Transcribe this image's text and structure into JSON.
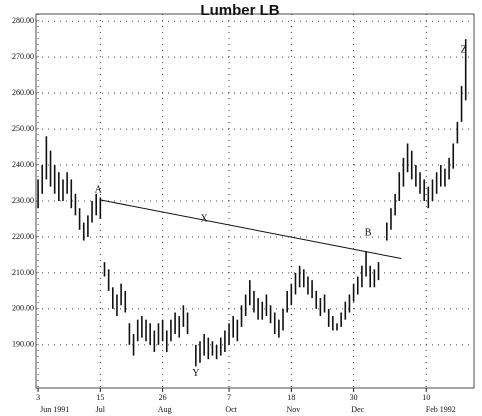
{
  "chart_data": {
    "type": "ohlc",
    "title": "Lumber LB",
    "color": "#111111",
    "grid": true,
    "ylim": [
      178,
      282
    ],
    "yticks": [
      {
        "value": 190,
        "label": "190.00"
      },
      {
        "value": 200,
        "label": "200.00"
      },
      {
        "value": 210,
        "label": "210.00"
      },
      {
        "value": 220,
        "label": "220.00"
      },
      {
        "value": 230,
        "label": "230.00"
      },
      {
        "value": 240,
        "label": "240.00"
      },
      {
        "value": 250,
        "label": "250.00"
      },
      {
        "value": 260,
        "label": "260.00"
      },
      {
        "value": 270,
        "label": "270.00"
      },
      {
        "value": 280,
        "label": "280.00"
      }
    ],
    "xlim": [
      -1,
      210
    ],
    "xticks": [
      {
        "value": 0,
        "label": "3"
      },
      {
        "value": 30,
        "label": "15"
      },
      {
        "value": 60,
        "label": "26"
      },
      {
        "value": 92,
        "label": "7"
      },
      {
        "value": 122,
        "label": "18"
      },
      {
        "value": 152,
        "label": "30"
      },
      {
        "value": 187,
        "label": "10"
      }
    ],
    "xtick_months": [
      {
        "value": 8,
        "label": "Jun 1991"
      },
      {
        "value": 30,
        "label": "Jul"
      },
      {
        "value": 61,
        "label": "Aug"
      },
      {
        "value": 93,
        "label": "Oct"
      },
      {
        "value": 123,
        "label": "Nov"
      },
      {
        "value": 154,
        "label": "Dec"
      },
      {
        "value": 194,
        "label": "Feb 1992"
      }
    ],
    "x": [
      0,
      2,
      4,
      6,
      8,
      10,
      12,
      14,
      16,
      18,
      20,
      22,
      24,
      26,
      28,
      30,
      32,
      34,
      36,
      38,
      40,
      42,
      44,
      46,
      48,
      50,
      52,
      54,
      56,
      58,
      60,
      62,
      64,
      66,
      68,
      70,
      72,
      76,
      78,
      80,
      82,
      84,
      86,
      88,
      90,
      92,
      94,
      96,
      98,
      100,
      102,
      104,
      106,
      108,
      110,
      112,
      114,
      116,
      118,
      120,
      122,
      124,
      126,
      128,
      130,
      132,
      134,
      136,
      138,
      140,
      142,
      144,
      146,
      148,
      150,
      152,
      154,
      156,
      158,
      160,
      162,
      164,
      168,
      170,
      172,
      174,
      176,
      178,
      180,
      182,
      184,
      186,
      188,
      190,
      192,
      194,
      196,
      198,
      200,
      202,
      204,
      206
    ],
    "high": [
      236,
      240,
      248,
      244,
      240,
      238,
      236,
      238,
      236,
      232,
      228,
      224,
      226,
      230,
      232,
      231,
      213,
      211,
      206,
      204,
      207,
      205,
      196,
      193,
      197,
      198,
      197,
      196,
      194,
      196,
      197,
      194,
      197,
      199,
      198,
      201,
      199,
      190,
      191,
      193,
      192,
      191,
      190,
      192,
      194,
      196,
      198,
      197,
      201,
      204,
      208,
      205,
      203,
      202,
      204,
      201,
      199,
      197,
      200,
      205,
      207,
      210,
      212,
      211,
      209,
      208,
      205,
      203,
      204,
      200,
      198,
      196,
      199,
      202,
      204,
      207,
      209,
      212,
      216,
      212,
      211,
      213,
      224,
      228,
      232,
      238,
      242,
      246,
      244,
      240,
      238,
      236,
      234,
      236,
      238,
      240,
      239,
      242,
      246,
      252,
      262,
      275
    ],
    "low": [
      228,
      232,
      236,
      234,
      232,
      230,
      230,
      232,
      228,
      226,
      222,
      219,
      220,
      224,
      226,
      225,
      209,
      205,
      200,
      198,
      201,
      199,
      190,
      187,
      191,
      192,
      191,
      190,
      188,
      190,
      191,
      188,
      191,
      193,
      192,
      195,
      193,
      184,
      185,
      187,
      186,
      187,
      186,
      187,
      188,
      190,
      192,
      191,
      195,
      198,
      201,
      199,
      197,
      197,
      198,
      196,
      193,
      192,
      194,
      199,
      201,
      204,
      206,
      206,
      204,
      203,
      200,
      198,
      199,
      195,
      194,
      194,
      195,
      197,
      199,
      202,
      204,
      206,
      209,
      206,
      206,
      208,
      219,
      222,
      226,
      230,
      234,
      238,
      236,
      234,
      232,
      230,
      228,
      230,
      232,
      234,
      234,
      236,
      239,
      246,
      252,
      258
    ],
    "trendline": {
      "x": [
        30,
        175
      ],
      "y": [
        230.3,
        214
      ]
    },
    "annotations": [
      {
        "text": "A",
        "x": 29,
        "y": 233
      },
      {
        "text": "X",
        "x": 80,
        "y": 225
      },
      {
        "text": "B",
        "x": 159,
        "y": 221
      },
      {
        "text": "Y",
        "x": 76,
        "y": 182
      },
      {
        "text": "Z",
        "x": 205,
        "y": 272
      }
    ]
  }
}
